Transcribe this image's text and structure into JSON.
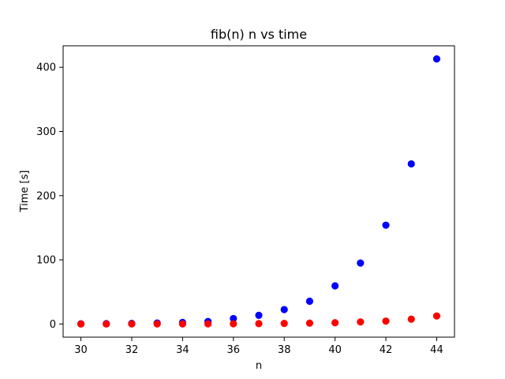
{
  "chart_data": {
    "type": "scatter",
    "title": "fib(n) n vs time",
    "xlabel": "n",
    "ylabel": "Time [s]",
    "xlim": [
      29.3,
      44.7
    ],
    "ylim": [
      -20.5,
      433.5
    ],
    "xticks": [
      30,
      32,
      34,
      36,
      38,
      40,
      42,
      44
    ],
    "yticks": [
      0,
      100,
      200,
      300,
      400
    ],
    "grid": false,
    "x": [
      30,
      31,
      32,
      33,
      34,
      35,
      36,
      37,
      38,
      39,
      40,
      41,
      42,
      43,
      44
    ],
    "series": [
      {
        "color": "#0000ff",
        "values": [
          0.35,
          0.55,
          0.9,
          1.5,
          2.4,
          3.9,
          8.5,
          13.5,
          22.5,
          35.5,
          59.5,
          95,
          154,
          249.5,
          413
        ]
      },
      {
        "color": "#ff0000",
        "values": [
          0.02,
          0.03,
          0.05,
          0.08,
          0.12,
          0.2,
          0.35,
          0.55,
          0.9,
          1.4,
          2.0,
          3.2,
          4.5,
          7.5,
          12.5
        ]
      }
    ]
  }
}
